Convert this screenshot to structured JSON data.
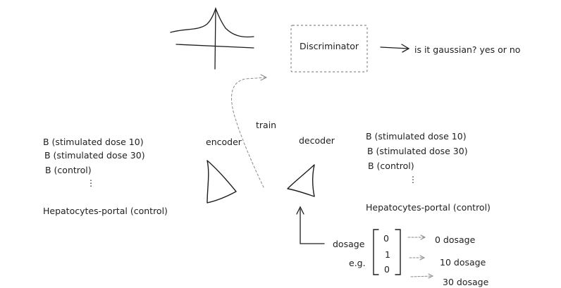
{
  "discriminator": {
    "label": "Discriminator"
  },
  "question": "is it gaussian? yes or no",
  "train_label": "train",
  "encoder_label": "encoder",
  "decoder_label": "decoder",
  "input_list": {
    "items": [
      "B (stimulated dose 10)",
      "B (stimulated dose 30)",
      "B (control)"
    ],
    "ellipsis": "⋮",
    "last": "Hepatocytes-portal (control)"
  },
  "output_list": {
    "items": [
      "B (stimulated dose 10)",
      "B (stimulated dose 30)",
      "B (control)"
    ],
    "ellipsis": "⋮",
    "last": "Hepatocytes-portal (control)"
  },
  "dosage": {
    "label": "dosage",
    "eg": "e.g.",
    "vector": [
      "0",
      "1",
      "0"
    ],
    "outputs": [
      "0 dosage",
      "10 dosage",
      "30 dosage"
    ]
  },
  "colors": {
    "stroke": "#1e1e1e",
    "dashed": "#8a8a8a"
  }
}
